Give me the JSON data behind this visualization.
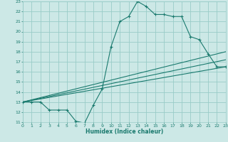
{
  "xlabel": "Humidex (Indice chaleur)",
  "bg_color": "#cce8e6",
  "grid_color": "#99ccc8",
  "line_color": "#1a7a6e",
  "xmin": 0,
  "xmax": 23,
  "ymin": 11,
  "ymax": 23,
  "xticks": [
    0,
    1,
    2,
    3,
    4,
    5,
    6,
    7,
    8,
    9,
    10,
    11,
    12,
    13,
    14,
    15,
    16,
    17,
    18,
    19,
    20,
    21,
    22,
    23
  ],
  "yticks": [
    11,
    12,
    13,
    14,
    15,
    16,
    17,
    18,
    19,
    20,
    21,
    22,
    23
  ],
  "main_x": [
    0,
    1,
    2,
    3,
    4,
    5,
    6,
    7,
    8,
    9,
    10,
    11,
    12,
    13,
    14,
    15,
    16,
    17,
    18,
    19,
    20,
    21,
    22,
    23
  ],
  "main_y": [
    13.0,
    13.0,
    13.0,
    12.2,
    12.2,
    12.2,
    11.1,
    10.9,
    12.7,
    14.3,
    18.5,
    21.0,
    21.5,
    23.0,
    22.5,
    21.7,
    21.7,
    21.5,
    21.5,
    19.5,
    19.2,
    17.8,
    16.5,
    16.5
  ],
  "line2_x": [
    0,
    23
  ],
  "line2_y": [
    13.0,
    16.5
  ],
  "line3_x": [
    0,
    23
  ],
  "line3_y": [
    13.0,
    17.2
  ],
  "line4_x": [
    0,
    23
  ],
  "line4_y": [
    13.0,
    18.0
  ]
}
